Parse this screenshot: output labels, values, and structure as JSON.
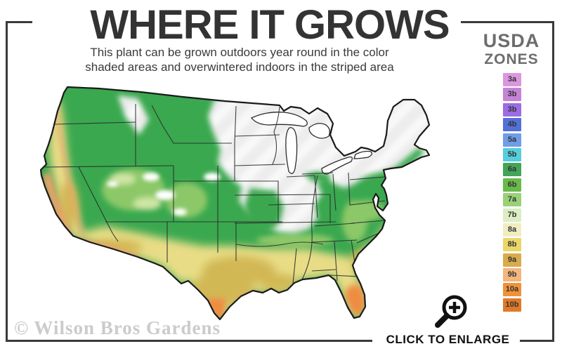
{
  "header": {
    "title": "WHERE IT GROWS",
    "subtitle_line1": "This plant can be grown outdoors year round in the color",
    "subtitle_line2": "shaded areas and overwintered indoors in the striped area"
  },
  "legend": {
    "title_line1": "USDA",
    "title_line2": "ZONES",
    "label_color": "#333333",
    "zones": [
      {
        "label": "3a",
        "color": "#dc96de"
      },
      {
        "label": "3b",
        "color": "#c583d8"
      },
      {
        "label": "3b",
        "color": "#9b6ce4"
      },
      {
        "label": "4b",
        "color": "#5470d6"
      },
      {
        "label": "5a",
        "color": "#6f9de8"
      },
      {
        "label": "5b",
        "color": "#57cedd"
      },
      {
        "label": "6a",
        "color": "#42a558"
      },
      {
        "label": "6b",
        "color": "#69ba4b"
      },
      {
        "label": "7a",
        "color": "#99d178"
      },
      {
        "label": "7b",
        "color": "#dcedc4"
      },
      {
        "label": "8a",
        "color": "#f1edc2"
      },
      {
        "label": "8b",
        "color": "#ead66a"
      },
      {
        "label": "9a",
        "color": "#d9ab4d"
      },
      {
        "label": "9b",
        "color": "#f3b67e"
      },
      {
        "label": "10a",
        "color": "#ef9238"
      },
      {
        "label": "10b",
        "color": "#e07a2a"
      }
    ]
  },
  "map": {
    "description": "Continental US plant hardiness map: color shaded areas are outdoor growing zones, pale diagonal-striped northern area is the overwinter-indoors region",
    "palette": {
      "green_main": "#3aa84f",
      "green_light": "#8cc868",
      "green_pale": "#cfe6a4",
      "yellow": "#e8dd86",
      "tan": "#d2b855",
      "orange": "#efa159",
      "salmon": "#f0a06a",
      "orange_deep": "#ee8c42",
      "striped_base": "#ececec",
      "stripe": "#f9f9f9",
      "white_patch": "#ffffff",
      "lake": "#ffffff",
      "outline": "#1a1a1a",
      "state_line": "#2c2c2c"
    }
  },
  "watermark": {
    "text": "© Wilson Bros Gardens"
  },
  "enlarge": {
    "label": "CLICK TO ENLARGE",
    "icon_color": "#111111"
  },
  "frame": {
    "color": "#3a3a3a"
  }
}
